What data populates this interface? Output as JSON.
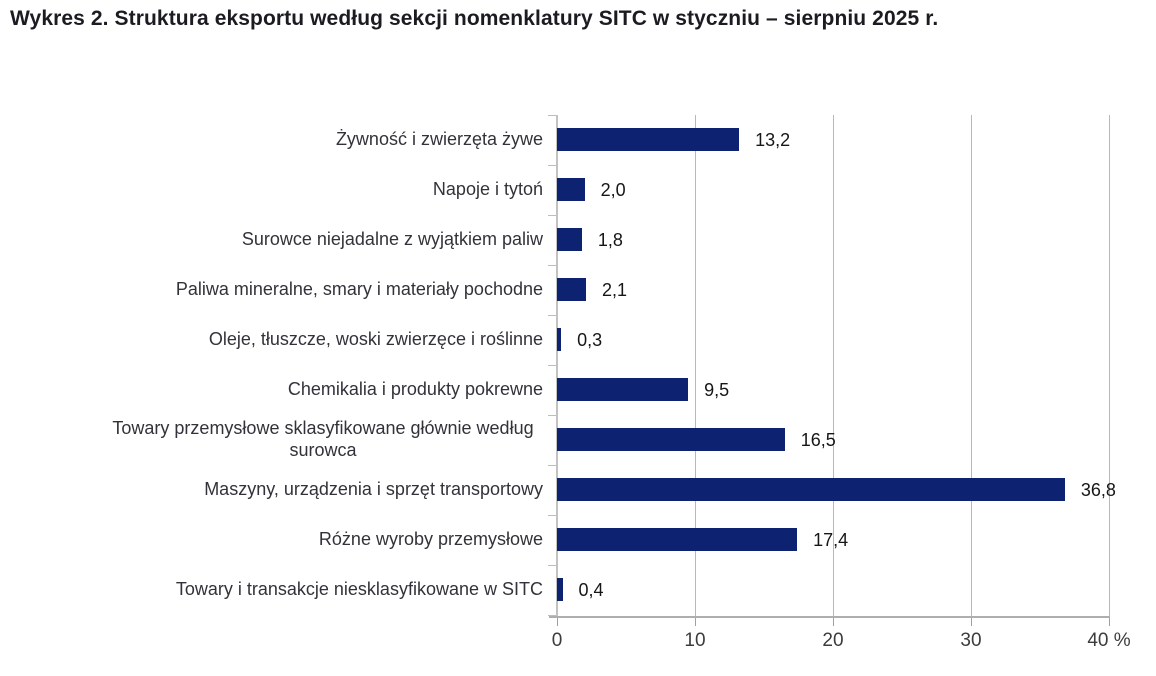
{
  "title": "Wykres 2. Struktura eksportu według sekcji nomenklatury SITC w styczniu – sierpniu 2025 r.",
  "chart_data": {
    "type": "bar",
    "orientation": "horizontal",
    "title": "Wykres 2. Struktura eksportu według sekcji nomenklatury SITC w styczniu – sierpniu 2025 r.",
    "categories": [
      "Żywność i zwierzęta żywe",
      "Napoje i tytoń",
      "Surowce niejadalne z wyjątkiem paliw",
      "Paliwa mineralne, smary i materiały pochodne",
      "Oleje, tłuszcze, woski zwierzęce i roślinne",
      "Chemikalia i produkty pokrewne",
      "Towary przemysłowe sklasyfikowane głównie według surowca",
      "Maszyny, urządzenia i sprzęt transportowy",
      "Różne wyroby przemysłowe",
      "Towary i transakcje niesklasyfikowane w SITC"
    ],
    "values": [
      13.2,
      2.0,
      1.8,
      2.1,
      0.3,
      9.5,
      16.5,
      36.8,
      17.4,
      0.4
    ],
    "value_labels": [
      "13,2",
      "2,0",
      "1,8",
      "2,1",
      "0,3",
      "9,5",
      "16,5",
      "36,8",
      "17,4",
      "0,4"
    ],
    "unit": "%",
    "xlabel": "",
    "ylabel": "",
    "xlim": [
      0,
      40
    ],
    "x_ticks": [
      0,
      10,
      20,
      30,
      40
    ],
    "x_tick_labels": [
      "0",
      "10",
      "20",
      "30",
      "40 %"
    ],
    "grid": true,
    "legend": "none",
    "bar_color": "#0e2272"
  }
}
